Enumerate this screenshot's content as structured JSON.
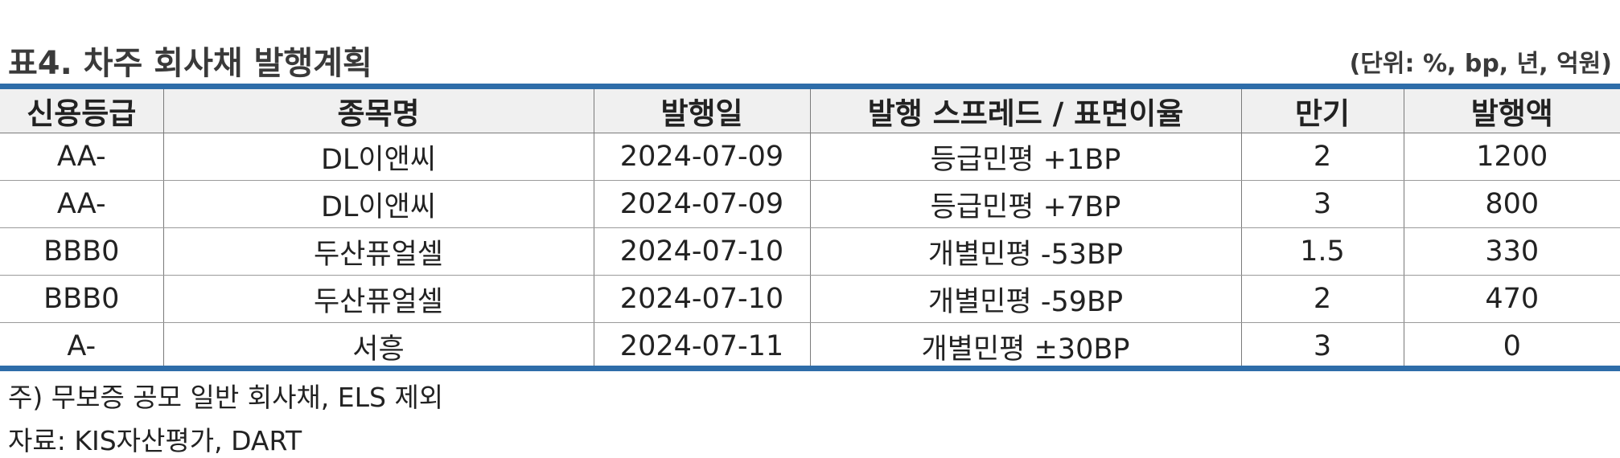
{
  "title": "표4. 차주 회사채 발행계획",
  "unit_note": "(단위: %, bp, 년, 억원)",
  "table": {
    "headers": [
      "신용등급",
      "종목명",
      "발행일",
      "발행 스프레드 / 표면이율",
      "만기",
      "발행액"
    ],
    "rows": [
      [
        "AA-",
        "DL이앤씨",
        "2024-07-09",
        "등급민평 +1BP",
        "2",
        "1200"
      ],
      [
        "AA-",
        "DL이앤씨",
        "2024-07-09",
        "등급민평 +7BP",
        "3",
        "800"
      ],
      [
        "BBB0",
        "두산퓨얼셀",
        "2024-07-10",
        "개별민평 -53BP",
        "1.5",
        "330"
      ],
      [
        "BBB0",
        "두산퓨얼셀",
        "2024-07-10",
        "개별민평 -59BP",
        "2",
        "470"
      ],
      [
        "A-",
        "서흥",
        "2024-07-11",
        "개별민평 ±30BP",
        "3",
        "0"
      ]
    ]
  },
  "footnote": "주) 무보증 공모 일반 회사채, ELS 제외",
  "source": "자료: KIS자산평가, DART",
  "colors": {
    "rule": "#2e6da9",
    "header_bg": "#f0f0f0"
  }
}
